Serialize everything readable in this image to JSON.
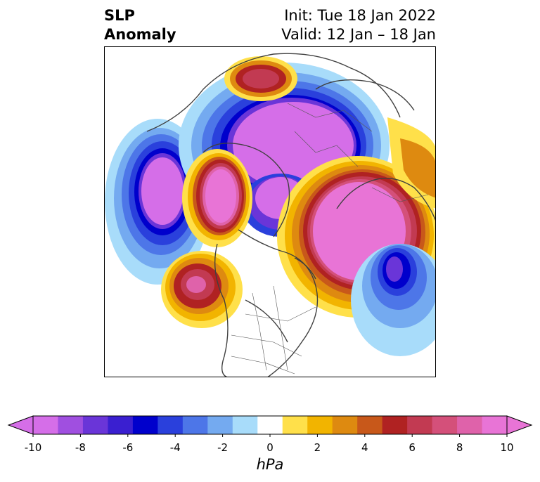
{
  "header": {
    "title_line1": "SLP",
    "title_line2": "Anomaly",
    "init_line": "Init: Tue 18 Jan 2022",
    "valid_line": "Valid: 12 Jan – 18 Jan"
  },
  "map": {
    "variable": "SLP Anomaly",
    "projection": "polar stereographic (Northern Hemisphere)"
  },
  "colorbar": {
    "units": "hPa",
    "min": -10,
    "max": 10,
    "ticks": [
      "-10",
      "-8",
      "-6",
      "-4",
      "-2",
      "0",
      "2",
      "4",
      "6",
      "8",
      "10"
    ],
    "levels": [
      -10,
      -9,
      -8,
      -7,
      -6,
      -5,
      -4,
      -3,
      -2,
      -1,
      1,
      2,
      3,
      4,
      5,
      6,
      7,
      8,
      9,
      10
    ],
    "colors": [
      "#d56ee8",
      "#a04fe0",
      "#6a35d8",
      "#3a1fd0",
      "#0000cc",
      "#2a40dc",
      "#4d76e8",
      "#74aaf0",
      "#a8dcfa",
      "#ffffff",
      "#ffe04a",
      "#f2b400",
      "#de8a10",
      "#c8581a",
      "#b02222",
      "#c23a52",
      "#d4507a",
      "#df62aa",
      "#e874d6"
    ],
    "extend": "both"
  }
}
